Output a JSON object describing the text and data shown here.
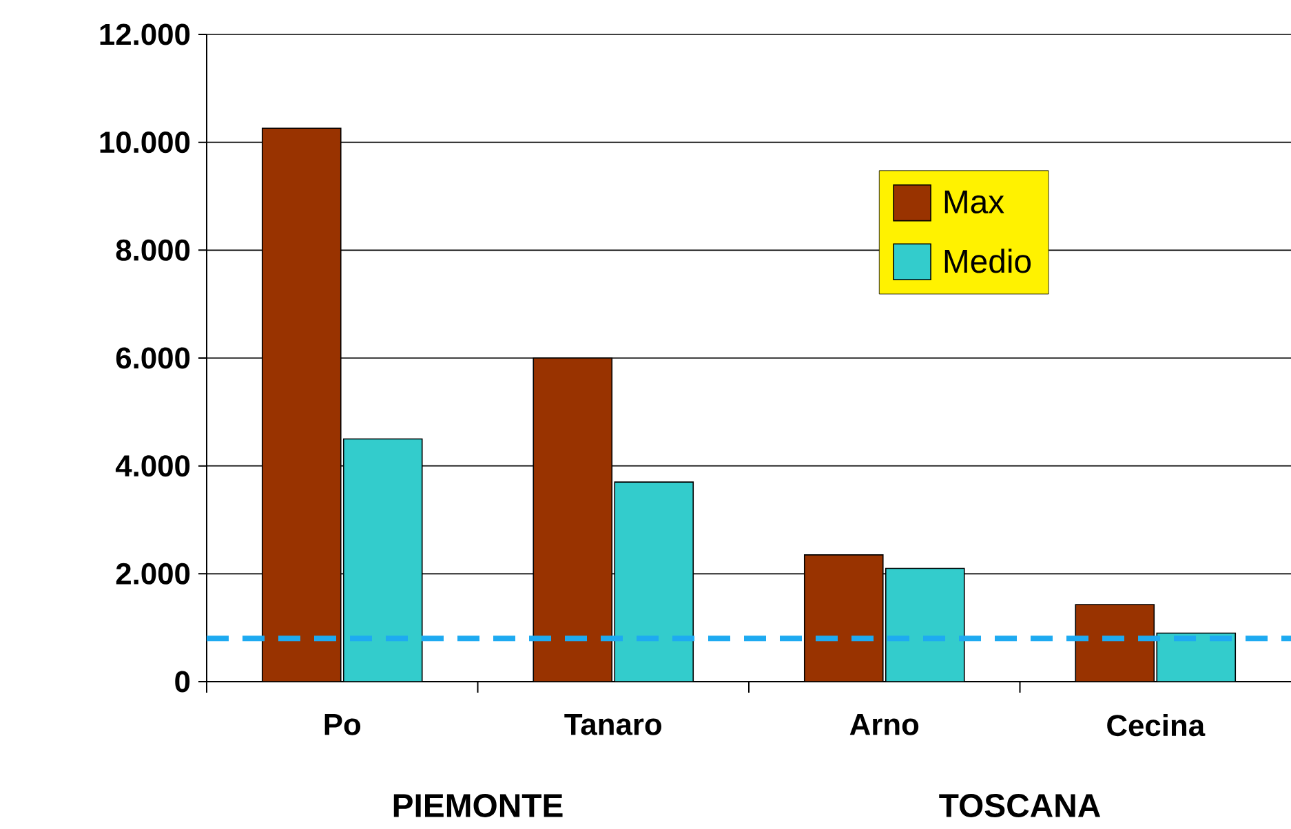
{
  "chart_data": {
    "type": "bar",
    "categories": [
      "Po",
      "Tanaro",
      "Arno",
      "Cecina"
    ],
    "series": [
      {
        "name": "Max",
        "color": "#993300",
        "values": [
          10260,
          6000,
          2350,
          1430
        ]
      },
      {
        "name": "Medio",
        "color": "#33cccc",
        "values": [
          4500,
          3700,
          2100,
          900
        ]
      }
    ],
    "ylim": [
      0,
      12000
    ],
    "yticks": [
      {
        "value": 0,
        "label": "0"
      },
      {
        "value": 2000,
        "label": "2.000"
      },
      {
        "value": 4000,
        "label": "4.000"
      },
      {
        "value": 6000,
        "label": "6.000"
      },
      {
        "value": 8000,
        "label": "8.000"
      },
      {
        "value": 10000,
        "label": "10.000"
      },
      {
        "value": 12000,
        "label": "12.000"
      }
    ],
    "grid": "y",
    "legend": "top right",
    "ref_lines": [
      {
        "axis": "y",
        "value": 800,
        "color": "#1eaaf1",
        "line_style": "dashed"
      }
    ],
    "annotations": [
      "PIEMONTE",
      "TOSCANA"
    ]
  }
}
